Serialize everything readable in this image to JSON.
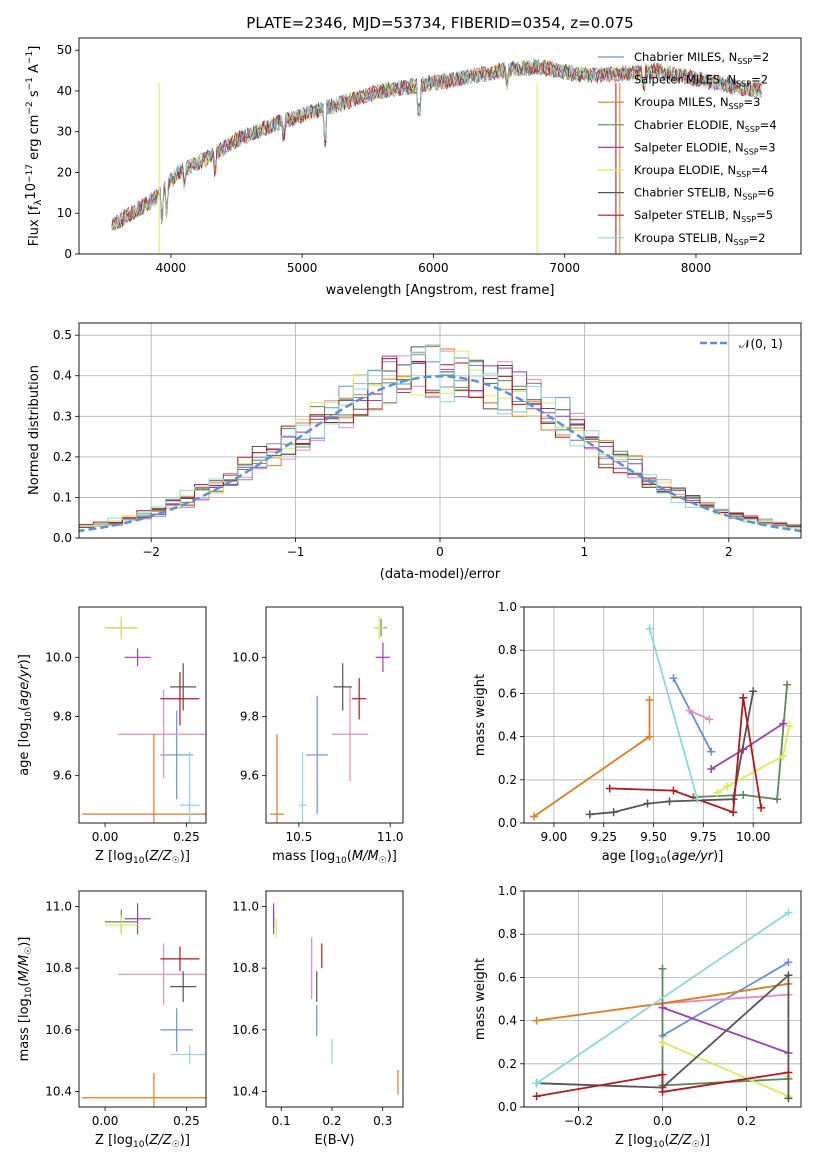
{
  "title": "PLATE=2346, MJD=53734, FIBERID=0354, z=0.075",
  "colors": {
    "Chabrier MILES": "#6a8fd8",
    "Salpeter MILES": "#e68bbd",
    "Kroupa MILES": "#e07b22",
    "Chabrier ELODIE": "#5c8a5c",
    "Salpeter ELODIE": "#9b3fb3",
    "Kroupa ELODIE": "#d8ec57",
    "Chabrier STELIB": "#555555",
    "Salpeter STELIB": "#b0191e",
    "Kroupa STELIB": "#8ad9d9",
    "normal": "#5b8fd6",
    "grid": "#b0b0b0"
  },
  "chart_data": [
    {
      "type": "line",
      "id": "spectrum",
      "title": "PLATE=2346, MJD=53734, FIBERID=0354, z=0.075",
      "xlabel": "wavelength [Angstrom, rest frame]",
      "ylabel": "Flux [f_λ 10^-17 erg cm^-2 s^-1 A^-1]",
      "xlim": [
        3300,
        8800
      ],
      "ylim": [
        0,
        53
      ],
      "xticks": [
        "4000",
        "5000",
        "6000",
        "7000",
        "8000"
      ],
      "yticks": [
        "0",
        "10",
        "20",
        "30",
        "40",
        "50"
      ],
      "grid": false,
      "legend_position": "right",
      "series": [
        {
          "name": "Chabrier MILES, N_SSP=2"
        },
        {
          "name": "Salpeter MILES, N_SSP=2"
        },
        {
          "name": "Kroupa MILES, N_SSP=3"
        },
        {
          "name": "Chabrier ELODIE, N_SSP=4"
        },
        {
          "name": "Salpeter ELODIE, N_SSP=3"
        },
        {
          "name": "Kroupa ELODIE, N_SSP=4"
        },
        {
          "name": "Chabrier STELIB, N_SSP=6"
        },
        {
          "name": "Salpeter STELIB, N_SSP=5"
        },
        {
          "name": "Kroupa STELIB, N_SSP=2"
        }
      ],
      "continuum": {
        "x": [
          3550,
          3700,
          3900,
          4050,
          4300,
          4500,
          4800,
          5000,
          5300,
          5600,
          5900,
          6200,
          6500,
          6800,
          7100,
          7400,
          7700,
          8000,
          8300,
          8500
        ],
        "y": [
          7,
          10,
          14,
          20,
          24,
          28,
          32,
          34,
          37,
          40,
          41.5,
          43,
          45,
          46,
          44,
          44,
          45,
          43,
          41,
          40
        ]
      }
    },
    {
      "type": "step",
      "id": "residuals",
      "xlabel": "(data-model)/error",
      "ylabel": "Normed distribution",
      "xlim": [
        -2.5,
        2.5
      ],
      "ylim": [
        0,
        0.53
      ],
      "xticks": [
        "−2",
        "−1",
        "0",
        "1",
        "2"
      ],
      "yticks": [
        "0.0",
        "0.1",
        "0.2",
        "0.3",
        "0.4",
        "0.5"
      ],
      "grid": true,
      "legend": "𝒩(0, 1)",
      "legend_position": "top-right"
    },
    {
      "type": "errorbar",
      "id": "Z-age",
      "xlabel": "Z [log10(Z/Z☉)]",
      "ylabel": "age [log10(age/yr)]",
      "xlim": [
        -0.08,
        0.31
      ],
      "ylim": [
        9.44,
        10.17
      ],
      "xticks": [
        "0.00",
        "0.25"
      ],
      "yticks": [
        "9.6",
        "9.8",
        "10.0"
      ],
      "points": [
        {
          "model": "Chabrier MILES",
          "x": 0.22,
          "y": 9.67,
          "xerr": 0.05,
          "yerr": 0.15
        },
        {
          "model": "Salpeter MILES",
          "x": 0.18,
          "y": 9.74,
          "xerr": 0.14,
          "yerr": 0.15
        },
        {
          "model": "Kroupa MILES",
          "x": 0.15,
          "y": 9.47,
          "xerr": 0.22,
          "yerr": 0.27
        },
        {
          "model": "Chabrier ELODIE",
          "x": 0.05,
          "y": 10.1,
          "xerr": 0.05,
          "yerr": 0.03
        },
        {
          "model": "Salpeter ELODIE",
          "x": 0.1,
          "y": 10.0,
          "xerr": 0.04,
          "yerr": 0.03
        },
        {
          "model": "Kroupa ELODIE",
          "x": 0.05,
          "y": 10.1,
          "xerr": 0.05,
          "yerr": 0.04
        },
        {
          "model": "Chabrier STELIB",
          "x": 0.24,
          "y": 9.9,
          "xerr": 0.04,
          "yerr": 0.08
        },
        {
          "model": "Salpeter STELIB",
          "x": 0.23,
          "y": 9.86,
          "xerr": 0.06,
          "yerr": 0.09
        },
        {
          "model": "Kroupa STELIB",
          "x": 0.26,
          "y": 9.5,
          "xerr": 0.03,
          "yerr": 0.18
        }
      ]
    },
    {
      "type": "errorbar",
      "id": "mass-age",
      "xlabel": "mass [log10(M/M☉)]",
      "ylabel": "",
      "xlim": [
        10.32,
        11.07
      ],
      "ylim": [
        9.44,
        10.17
      ],
      "xticks": [
        "10.5",
        "11.0"
      ],
      "yticks": [
        "9.6",
        "9.8",
        "10.0"
      ],
      "points": [
        {
          "model": "Chabrier MILES",
          "x": 10.6,
          "y": 9.67,
          "xerr": 0.06,
          "yerr": 0.2
        },
        {
          "model": "Salpeter MILES",
          "x": 10.78,
          "y": 9.74,
          "xerr": 0.1,
          "yerr": 0.16
        },
        {
          "model": "Kroupa MILES",
          "x": 10.38,
          "y": 9.47,
          "xerr": 0.04,
          "yerr": 0.27
        },
        {
          "model": "Chabrier ELODIE",
          "x": 10.95,
          "y": 10.1,
          "xerr": 0.03,
          "yerr": 0.03
        },
        {
          "model": "Salpeter ELODIE",
          "x": 10.96,
          "y": 10.0,
          "xerr": 0.04,
          "yerr": 0.05
        },
        {
          "model": "Kroupa ELODIE",
          "x": 10.94,
          "y": 10.1,
          "xerr": 0.03,
          "yerr": 0.04
        },
        {
          "model": "Chabrier STELIB",
          "x": 10.74,
          "y": 9.9,
          "xerr": 0.05,
          "yerr": 0.08
        },
        {
          "model": "Salpeter STELIB",
          "x": 10.83,
          "y": 9.86,
          "xerr": 0.04,
          "yerr": 0.07
        },
        {
          "model": "Kroupa STELIB",
          "x": 10.52,
          "y": 9.5,
          "xerr": 0.02,
          "yerr": 0.18
        }
      ]
    },
    {
      "type": "line",
      "id": "age-weight",
      "xlabel": "age [log10(age/yr)]",
      "ylabel": "mass weight",
      "xlim": [
        8.85,
        10.24
      ],
      "ylim": [
        0,
        1.0
      ],
      "xticks": [
        "9.00",
        "9.25",
        "9.50",
        "9.75",
        "10.00"
      ],
      "yticks": [
        "0.0",
        "0.2",
        "0.4",
        "0.6",
        "0.8",
        "1.0"
      ],
      "grid": true,
      "series": [
        {
          "model": "Chabrier MILES",
          "x": [
            9.6,
            9.79
          ],
          "y": [
            0.67,
            0.33
          ]
        },
        {
          "model": "Salpeter MILES",
          "x": [
            9.68,
            9.78
          ],
          "y": [
            0.52,
            0.48
          ]
        },
        {
          "model": "Kroupa MILES",
          "x": [
            8.9,
            9.48,
            9.48
          ],
          "y": [
            0.03,
            0.4,
            0.57
          ]
        },
        {
          "model": "Chabrier ELODIE",
          "x": [
            9.7,
            9.95,
            10.12,
            10.17
          ],
          "y": [
            0.12,
            0.13,
            0.11,
            0.64
          ]
        },
        {
          "model": "Salpeter ELODIE",
          "x": [
            9.79,
            9.95,
            10.15
          ],
          "y": [
            0.25,
            0.34,
            0.46
          ]
        },
        {
          "model": "Kroupa ELODIE",
          "x": [
            9.82,
            9.87,
            10.15,
            10.18
          ],
          "y": [
            0.14,
            0.17,
            0.31,
            0.45
          ]
        },
        {
          "model": "Chabrier STELIB",
          "x": [
            9.18,
            9.3,
            9.47,
            9.58,
            9.9,
            10.0
          ],
          "y": [
            0.04,
            0.05,
            0.09,
            0.1,
            0.11,
            0.61
          ]
        },
        {
          "model": "Salpeter STELIB",
          "x": [
            9.28,
            9.6,
            9.9,
            9.95,
            10.04
          ],
          "y": [
            0.16,
            0.15,
            0.05,
            0.58,
            0.07
          ]
        },
        {
          "model": "Kroupa STELIB",
          "x": [
            9.48,
            9.72
          ],
          "y": [
            0.9,
            0.11
          ]
        }
      ]
    },
    {
      "type": "errorbar",
      "id": "Z-mass",
      "xlabel": "Z [log10(Z/Z☉)]",
      "ylabel": "mass [log10(M/M☉)]",
      "xlim": [
        -0.08,
        0.31
      ],
      "ylim": [
        10.35,
        11.05
      ],
      "xticks": [
        "0.00",
        "0.25"
      ],
      "yticks": [
        "10.4",
        "10.6",
        "10.8",
        "11.0"
      ],
      "points": [
        {
          "model": "Chabrier MILES",
          "x": 0.22,
          "y": 10.6,
          "xerr": 0.05,
          "yerr": 0.07
        },
        {
          "model": "Salpeter MILES",
          "x": 0.18,
          "y": 10.78,
          "xerr": 0.14,
          "yerr": 0.1
        },
        {
          "model": "Kroupa MILES",
          "x": 0.15,
          "y": 10.38,
          "xerr": 0.22,
          "yerr": 0.08
        },
        {
          "model": "Chabrier ELODIE",
          "x": 0.05,
          "y": 10.95,
          "xerr": 0.05,
          "yerr": 0.04
        },
        {
          "model": "Salpeter ELODIE",
          "x": 0.1,
          "y": 10.96,
          "xerr": 0.04,
          "yerr": 0.05
        },
        {
          "model": "Kroupa ELODIE",
          "x": 0.05,
          "y": 10.94,
          "xerr": 0.05,
          "yerr": 0.03
        },
        {
          "model": "Chabrier STELIB",
          "x": 0.24,
          "y": 10.74,
          "xerr": 0.04,
          "yerr": 0.05
        },
        {
          "model": "Salpeter STELIB",
          "x": 0.23,
          "y": 10.83,
          "xerr": 0.06,
          "yerr": 0.04
        },
        {
          "model": "Kroupa STELIB",
          "x": 0.26,
          "y": 10.52,
          "xerr": 0.06,
          "yerr": 0.03
        }
      ]
    },
    {
      "type": "errorbar",
      "id": "EBV-mass",
      "xlabel": "E(B-V)",
      "ylabel": "",
      "xlim": [
        0.07,
        0.34
      ],
      "ylim": [
        10.35,
        11.05
      ],
      "xticks": [
        "0.1",
        "0.2",
        "0.3"
      ],
      "yticks": [
        "10.4",
        "10.6",
        "10.8",
        "11.0"
      ],
      "points": [
        {
          "model": "Chabrier MILES",
          "x": 0.17,
          "y": 10.63,
          "xerr": 0,
          "yerr": 0.05
        },
        {
          "model": "Salpeter MILES",
          "x": 0.16,
          "y": 10.8,
          "xerr": 0,
          "yerr": 0.1
        },
        {
          "model": "Kroupa MILES",
          "x": 0.33,
          "y": 10.43,
          "xerr": 0,
          "yerr": 0.04
        },
        {
          "model": "Chabrier ELODIE",
          "x": 0.085,
          "y": 10.95,
          "xerr": 0,
          "yerr": 0.04
        },
        {
          "model": "Salpeter ELODIE",
          "x": 0.085,
          "y": 10.97,
          "xerr": 0,
          "yerr": 0.04
        },
        {
          "model": "Kroupa ELODIE",
          "x": 0.09,
          "y": 10.93,
          "xerr": 0,
          "yerr": 0.03
        },
        {
          "model": "Chabrier STELIB",
          "x": 0.17,
          "y": 10.74,
          "xerr": 0,
          "yerr": 0.05
        },
        {
          "model": "Salpeter STELIB",
          "x": 0.18,
          "y": 10.84,
          "xerr": 0,
          "yerr": 0.04
        },
        {
          "model": "Kroupa STELIB",
          "x": 0.2,
          "y": 10.53,
          "xerr": 0,
          "yerr": 0.04
        }
      ]
    },
    {
      "type": "line",
      "id": "Z-weight",
      "xlabel": "Z [log10(Z/Z☉)]",
      "ylabel": "mass weight",
      "xlim": [
        -0.33,
        0.33
      ],
      "ylim": [
        0,
        1.0
      ],
      "xticks": [
        "−0.2",
        "0.0",
        "0.2"
      ],
      "yticks": [
        "0.0",
        "0.2",
        "0.4",
        "0.6",
        "0.8",
        "1.0"
      ],
      "grid": true,
      "series": [
        {
          "model": "Chabrier MILES",
          "x": [
            0.0,
            0.3
          ],
          "y": [
            0.33,
            0.67
          ]
        },
        {
          "model": "Salpeter MILES",
          "x": [
            0.0,
            0.3
          ],
          "y": [
            0.48,
            0.52
          ]
        },
        {
          "model": "Kroupa MILES",
          "x": [
            -0.3,
            0.0,
            0.3
          ],
          "y": [
            0.4,
            0.48,
            0.57
          ]
        },
        {
          "model": "Chabrier ELODIE",
          "x": [
            0.0,
            0.0,
            0.3
          ],
          "y": [
            0.64,
            0.1,
            0.13
          ]
        },
        {
          "model": "Salpeter ELODIE",
          "x": [
            0.0,
            0.3
          ],
          "y": [
            0.46,
            0.25
          ]
        },
        {
          "model": "Kroupa ELODIE",
          "x": [
            0.0,
            0.3,
            0.3
          ],
          "y": [
            0.3,
            0.05,
            0.14
          ]
        },
        {
          "model": "Chabrier STELIB",
          "x": [
            -0.3,
            0.0,
            0.3,
            0.3
          ],
          "y": [
            0.11,
            0.09,
            0.61,
            0.04
          ]
        },
        {
          "model": "Salpeter STELIB",
          "x": [
            -0.3,
            0.0,
            0.0,
            0.3
          ],
          "y": [
            0.05,
            0.15,
            0.07,
            0.16
          ]
        },
        {
          "model": "Kroupa STELIB",
          "x": [
            -0.3,
            0.3
          ],
          "y": [
            0.11,
            0.9
          ]
        }
      ]
    }
  ]
}
